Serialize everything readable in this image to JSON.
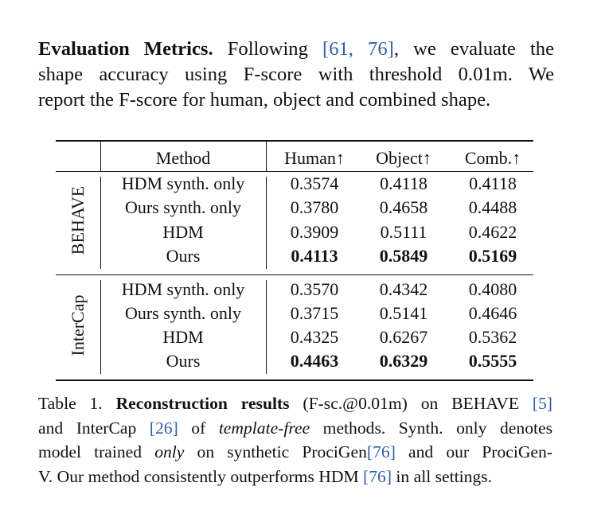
{
  "paragraph": {
    "heading": "Evaluation Metrics.",
    "line1_a": "Following",
    "cite_a": "[61, 76]",
    "line1_b": ", we evaluate the",
    "line2": "shape accuracy using F-score with threshold 0.01m. We",
    "line3": "report the F-score for human, object and combined shape."
  },
  "table": {
    "headers": [
      "Method",
      "Human↑",
      "Object↑",
      "Comb.↑"
    ],
    "groups": [
      {
        "name": "BEHAVE",
        "rows": [
          {
            "method": "HDM synth. only",
            "human": "0.3574",
            "object": "0.4118",
            "comb": "0.4118"
          },
          {
            "method": "Ours synth. only",
            "human": "0.3780",
            "object": "0.4658",
            "comb": "0.4488"
          },
          {
            "method": "HDM",
            "human": "0.3909",
            "object": "0.5111",
            "comb": "0.4622"
          },
          {
            "method": "Ours",
            "human": "0.4113",
            "object": "0.5849",
            "comb": "0.5169"
          }
        ]
      },
      {
        "name": "InterCap",
        "rows": [
          {
            "method": "HDM synth. only",
            "human": "0.3570",
            "object": "0.4342",
            "comb": "0.4080"
          },
          {
            "method": "Ours synth. only",
            "human": "0.3715",
            "object": "0.5141",
            "comb": "0.4646"
          },
          {
            "method": "HDM",
            "human": "0.4325",
            "object": "0.6267",
            "comb": "0.5362"
          },
          {
            "method": "Ours",
            "human": "0.4463",
            "object": "0.6329",
            "comb": "0.5555"
          }
        ]
      }
    ]
  },
  "caption": {
    "label": "Table 1.",
    "title": "Reconstruction results",
    "l1_rest": " (F-sc.@0.01m) on BEHAVE ",
    "cite_behave": "[5]",
    "l2_a": "and InterCap ",
    "cite_intercap": "[26]",
    "l2_b": " of ",
    "l2_em": "template-free",
    "l2_c": " methods. Synth. only denotes",
    "l3_a": "model trained ",
    "l3_em": "only",
    "l3_b": " on synthetic ProciGen",
    "cite_procigen": "[76]",
    "l3_c": " and our ProciGen-",
    "l4_a": "V. Our method consistently outperforms HDM ",
    "cite_hdm": "[76]",
    "l4_b": " in all settings."
  }
}
